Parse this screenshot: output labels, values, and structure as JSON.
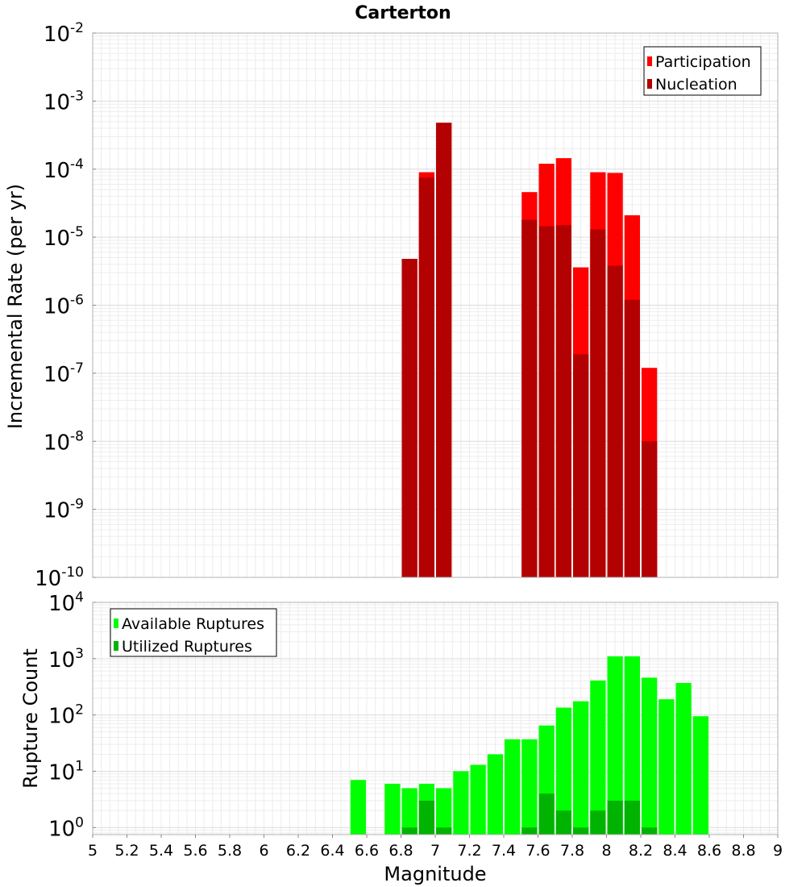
{
  "chart_data": [
    {
      "type": "bar",
      "title": "Carterton",
      "ylabel": "Incremental Rate (per yr)",
      "xlabel": "",
      "yscale": "log",
      "ylim": [
        1e-10,
        0.01
      ],
      "xlim": [
        5,
        9
      ],
      "y_tick_labels": [
        {
          "base": "10",
          "exp": "-10",
          "value": 1e-10
        },
        {
          "base": "10",
          "exp": "-9",
          "value": 1e-09
        },
        {
          "base": "10",
          "exp": "-8",
          "value": 1e-08
        },
        {
          "base": "10",
          "exp": "-7",
          "value": 1e-07
        },
        {
          "base": "10",
          "exp": "-6",
          "value": 1e-06
        },
        {
          "base": "10",
          "exp": "-5",
          "value": 1e-05
        },
        {
          "base": "10",
          "exp": "-4",
          "value": 0.0001
        },
        {
          "base": "10",
          "exp": "-3",
          "value": 0.001
        },
        {
          "base": "10",
          "exp": "-2",
          "value": 0.01
        }
      ],
      "grid": true,
      "legend_position": "top-right",
      "bar_width": 0.1,
      "series": [
        {
          "name": "Participation",
          "color": "#ff0000",
          "x": [
            6.85,
            6.95,
            7.05,
            7.55,
            7.65,
            7.75,
            7.85,
            7.95,
            8.05,
            8.15,
            8.25
          ],
          "values": [
            4.8e-06,
            9e-05,
            0.00048,
            4.6e-05,
            0.00012,
            0.000145,
            3.6e-06,
            9e-05,
            8.8e-05,
            2.1e-05,
            1.2e-07
          ]
        },
        {
          "name": "Nucleation",
          "color": "#b30000",
          "x": [
            6.85,
            6.95,
            7.05,
            7.55,
            7.65,
            7.75,
            7.85,
            7.95,
            8.05,
            8.15,
            8.25
          ],
          "values": [
            4.8e-06,
            7.5e-05,
            0.00048,
            1.8e-05,
            1.45e-05,
            1.5e-05,
            1.9e-07,
            1.3e-05,
            3.8e-06,
            1.2e-06,
            1e-08
          ]
        }
      ]
    },
    {
      "type": "bar",
      "title": "",
      "ylabel": "Rupture Count",
      "xlabel": "Magnitude",
      "yscale": "log",
      "ylim": [
        0.75,
        10000
      ],
      "xlim": [
        5,
        9
      ],
      "x_ticks": [
        "5",
        "5.2",
        "5.4",
        "5.6",
        "5.8",
        "6",
        "6.2",
        "6.4",
        "6.6",
        "6.8",
        "7",
        "7.2",
        "7.4",
        "7.6",
        "7.8",
        "8",
        "8.2",
        "8.4",
        "8.6",
        "8.8",
        "9"
      ],
      "y_tick_labels": [
        {
          "base": "10",
          "exp": "0",
          "value": 1
        },
        {
          "base": "10",
          "exp": "1",
          "value": 10
        },
        {
          "base": "10",
          "exp": "2",
          "value": 100
        },
        {
          "base": "10",
          "exp": "3",
          "value": 1000
        },
        {
          "base": "10",
          "exp": "4",
          "value": 10000
        }
      ],
      "grid": true,
      "legend_position": "top-left",
      "bar_width": 0.1,
      "series": [
        {
          "name": "Available Ruptures",
          "color": "#00ff00",
          "x": [
            6.55,
            6.75,
            6.85,
            6.95,
            7.05,
            7.15,
            7.25,
            7.35,
            7.45,
            7.55,
            7.65,
            7.75,
            7.85,
            7.95,
            8.05,
            8.15,
            8.25,
            8.35,
            8.45,
            8.55
          ],
          "values": [
            7,
            6,
            5,
            6,
            5,
            10,
            13,
            20,
            37,
            37,
            65,
            135,
            175,
            410,
            1100,
            1100,
            460,
            190,
            370,
            95
          ]
        },
        {
          "name": "Utilized Ruptures",
          "color": "#00b300",
          "x": [
            6.85,
            6.95,
            7.05,
            7.55,
            7.65,
            7.75,
            7.85,
            7.95,
            8.05,
            8.15,
            8.25
          ],
          "values": [
            1,
            3,
            1,
            1,
            4,
            2,
            1,
            2,
            3,
            3,
            1
          ]
        }
      ]
    }
  ]
}
